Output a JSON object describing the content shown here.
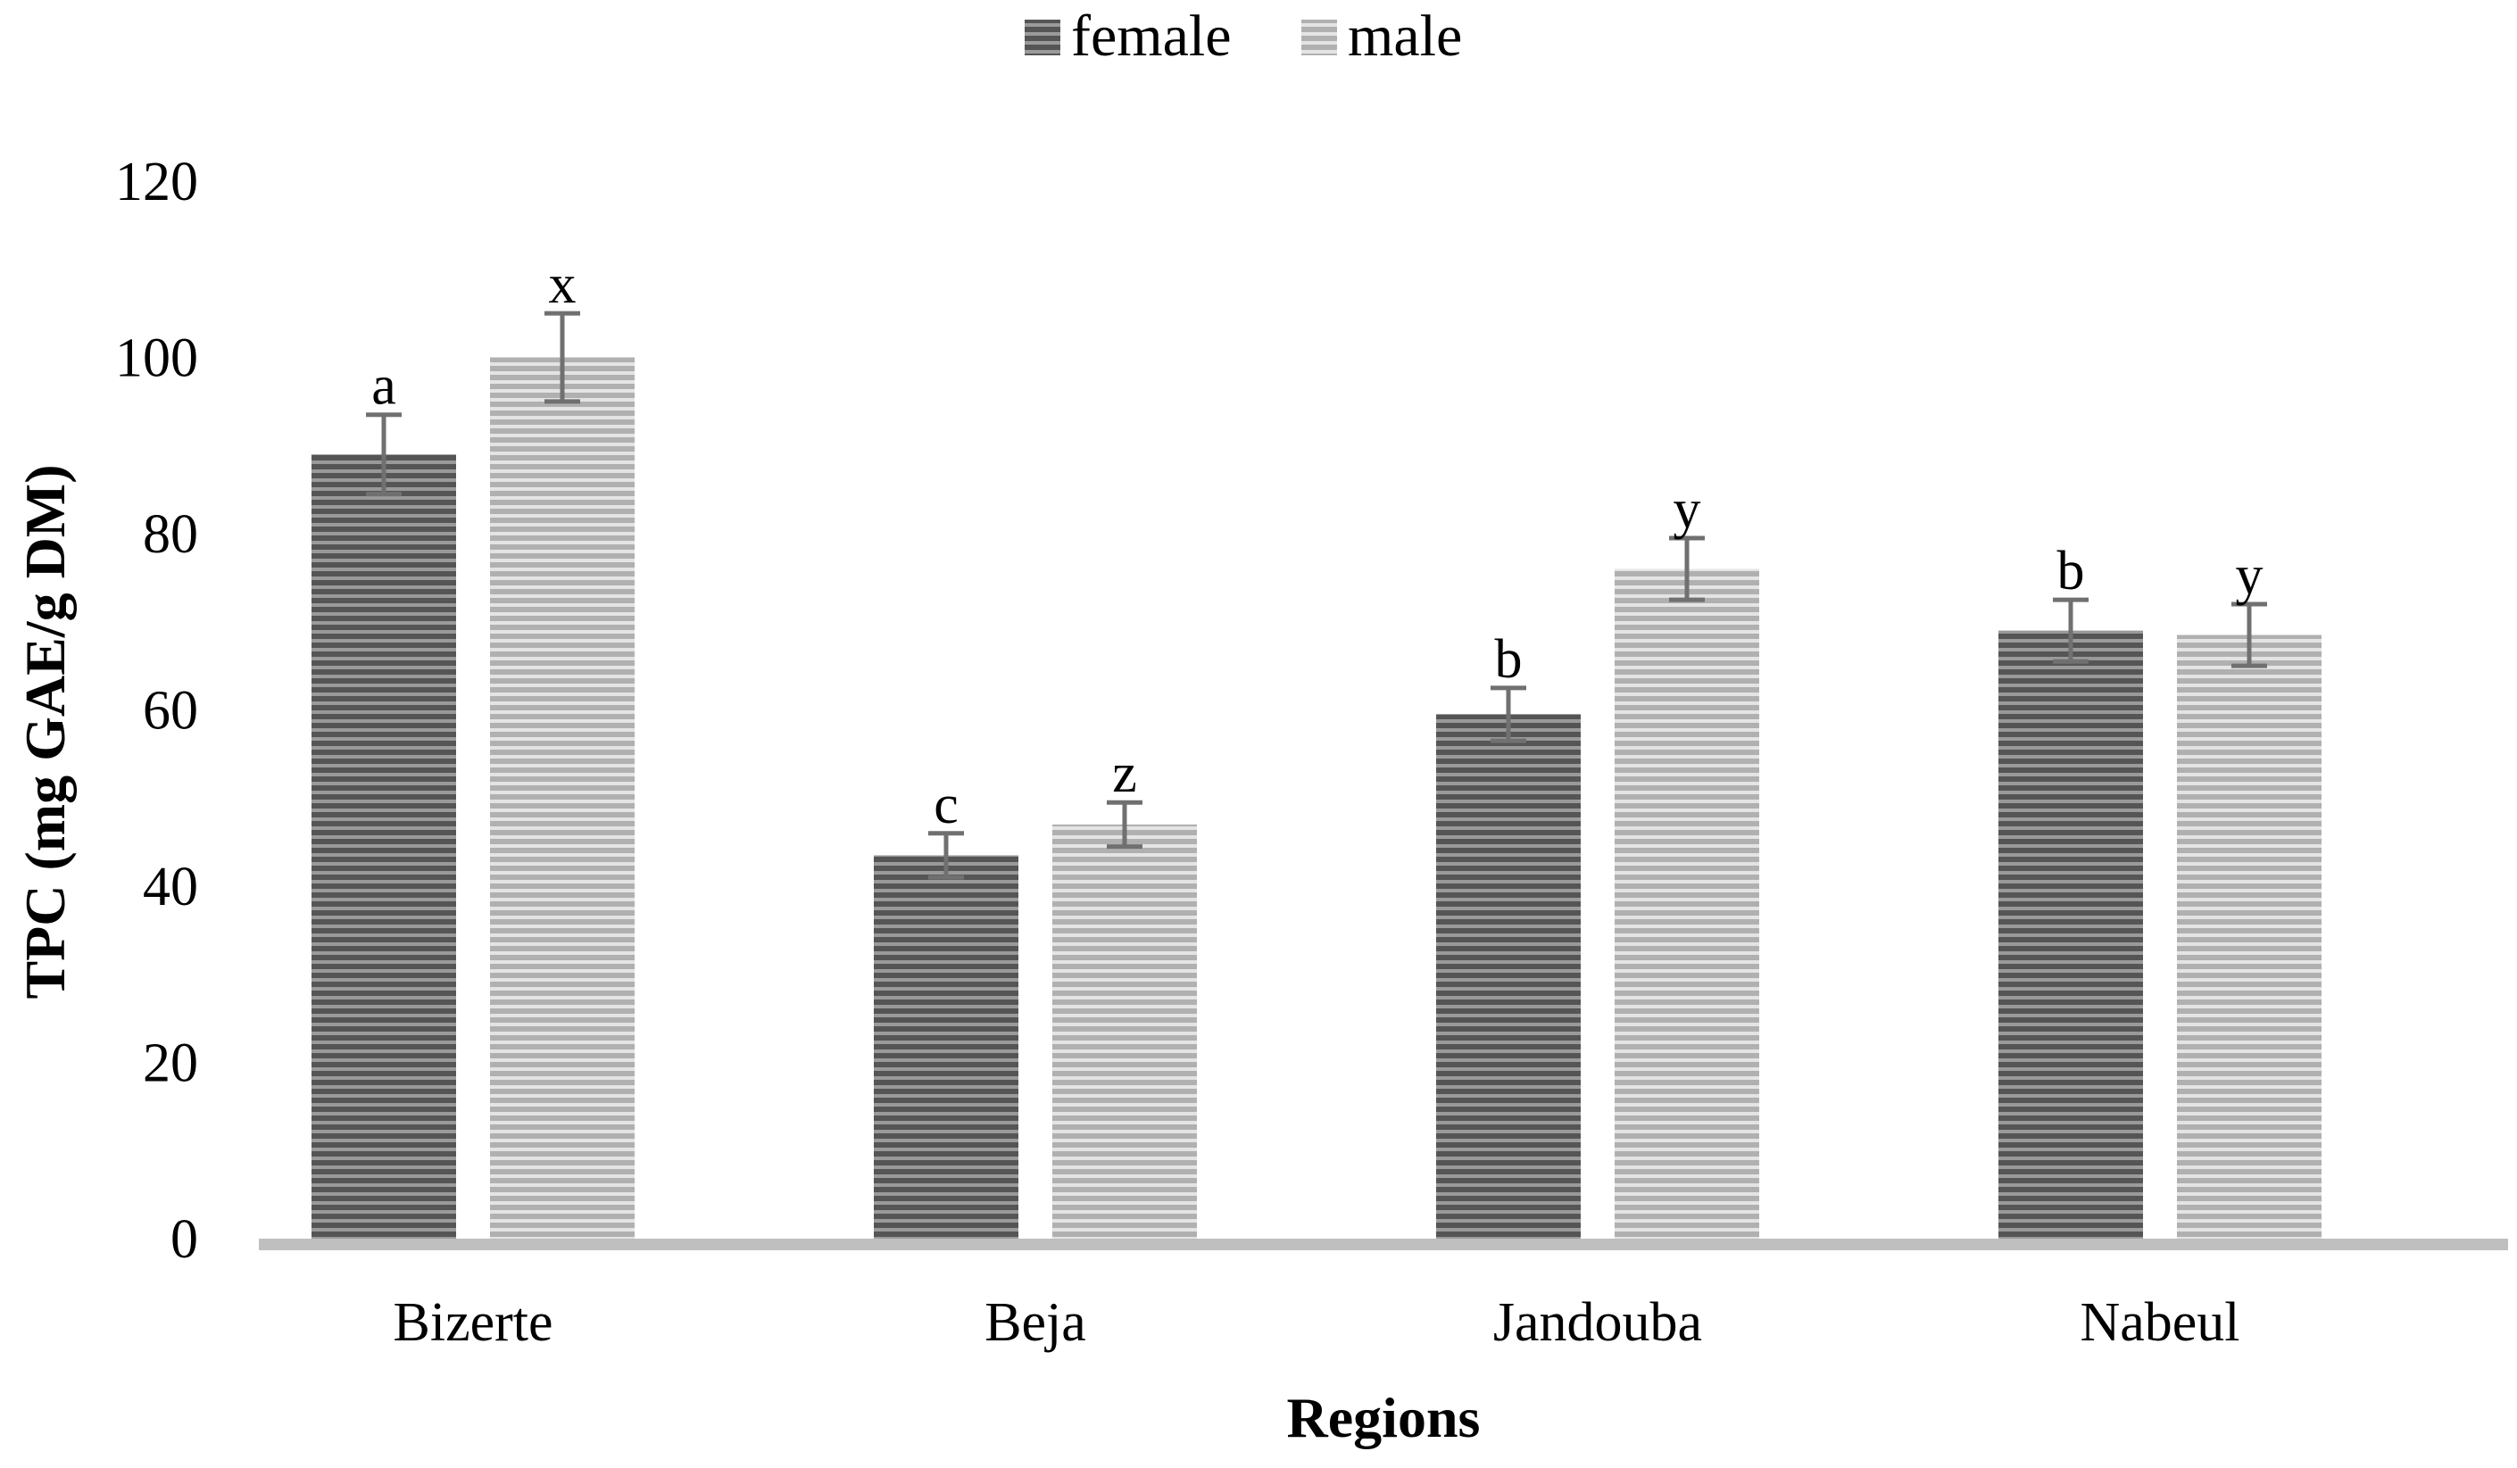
{
  "chart_data": {
    "type": "bar",
    "title": "",
    "xlabel": "Regions",
    "ylabel": "TPC (mg GAE/g DM)",
    "ylim": [
      0,
      120
    ],
    "yticks": [
      0,
      20,
      40,
      60,
      80,
      100,
      120
    ],
    "grid": false,
    "legend_position": "top-center",
    "categories": [
      "Bizerte",
      "Beja",
      "Jandouba",
      "Nabeul"
    ],
    "series": [
      {
        "name": "female",
        "color": "#555555",
        "stripe_color": "#9a9a9a",
        "values": [
          89,
          43.5,
          59.5,
          69
        ],
        "errors": [
          4.5,
          2.5,
          3,
          3.5
        ],
        "letters": [
          "a",
          "c",
          "b",
          "b"
        ]
      },
      {
        "name": "male",
        "color": "#b0b0b0",
        "stripe_color": "#e4e4e4",
        "values": [
          100,
          47,
          76,
          68.5
        ],
        "errors": [
          5,
          2.5,
          3.5,
          3.5
        ],
        "letters": [
          "x",
          "z",
          "y",
          "y"
        ]
      }
    ],
    "axis_color": "#bfbfbf",
    "error_bar_color": "#707070"
  }
}
